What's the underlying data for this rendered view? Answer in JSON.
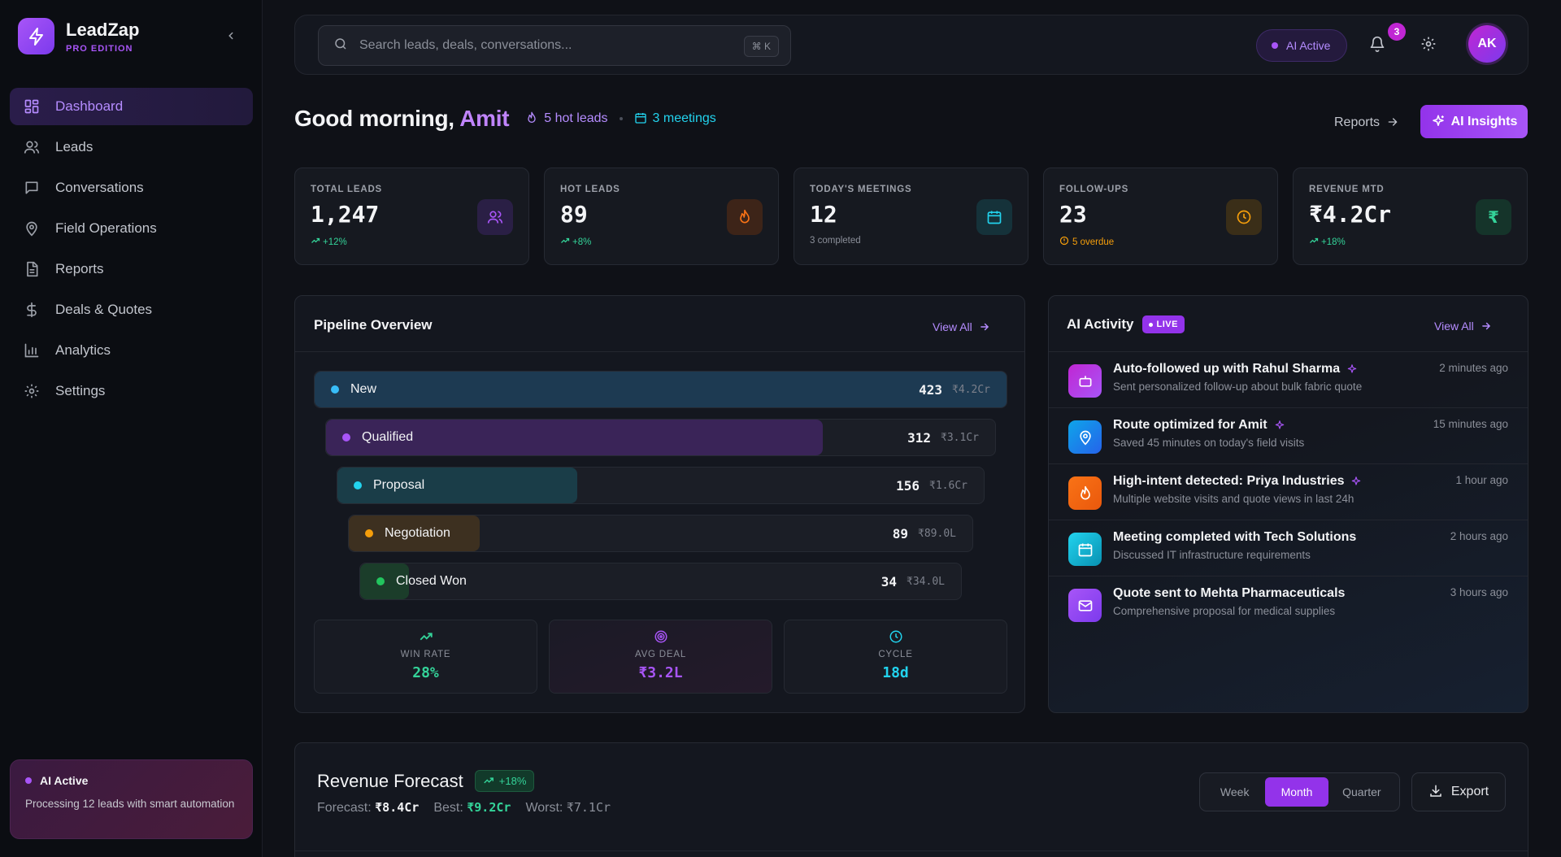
{
  "brand": {
    "name": "LeadZap",
    "edition": "PRO EDITION"
  },
  "nav": [
    {
      "label": "Dashboard",
      "icon": "dashboard-icon",
      "active": true
    },
    {
      "label": "Leads",
      "icon": "users-icon"
    },
    {
      "label": "Conversations",
      "icon": "chat-icon"
    },
    {
      "label": "Field Operations",
      "icon": "map-pin-icon"
    },
    {
      "label": "Reports",
      "icon": "document-icon"
    },
    {
      "label": "Deals & Quotes",
      "icon": "dollar-icon"
    },
    {
      "label": "Analytics",
      "icon": "bar-chart-icon"
    },
    {
      "label": "Settings",
      "icon": "gear-icon"
    }
  ],
  "ai_card": {
    "title": "AI Active",
    "desc": "Processing 12 leads with smart automation"
  },
  "topbar": {
    "search_placeholder": "Search leads, deals, conversations...",
    "shortcut": "⌘ K",
    "ai_status": "AI Active",
    "notifications": "3",
    "avatar": "AK"
  },
  "greeting": {
    "prefix": "Good morning,",
    "name": "Amit",
    "hot_leads": "5 hot leads",
    "meetings": "3 meetings",
    "reports_link": "Reports",
    "insights_button": "AI Insights"
  },
  "stats": [
    {
      "label": "TOTAL LEADS",
      "value": "1,247",
      "sub": "+12%",
      "sub_color": "#34d399",
      "icon": "users-icon",
      "accent": "#a855f7",
      "bg": "#2a1f45"
    },
    {
      "label": "HOT LEADS",
      "value": "89",
      "sub": "+8%",
      "sub_color": "#34d399",
      "icon": "flame-icon",
      "accent": "#f97316",
      "bg": "#3d2418"
    },
    {
      "label": "TODAY'S MEETINGS",
      "value": "12",
      "sub": "3 completed",
      "sub_color": "#8b8f99",
      "icon": "calendar-icon",
      "accent": "#22d3ee",
      "bg": "#15323a"
    },
    {
      "label": "FOLLOW-UPS",
      "value": "23",
      "sub": "5 overdue",
      "sub_color": "#f59e0b",
      "icon": "clock-icon",
      "accent": "#f59e0b",
      "bg": "#3a2e18"
    },
    {
      "label": "REVENUE MTD",
      "value": "₹4.2Cr",
      "sub": "+18%",
      "sub_color": "#34d399",
      "icon": "rupee-icon",
      "accent": "#34d399",
      "bg": "#15342a"
    }
  ],
  "pipeline": {
    "title": "Pipeline Overview",
    "view_all": "View All",
    "stages": [
      {
        "name": "New",
        "count": "423",
        "amount": "₹4.2Cr",
        "fill": 1.0,
        "color": "#38bdf8",
        "fill_color": "#1d3a52"
      },
      {
        "name": "Qualified",
        "count": "312",
        "amount": "₹3.1Cr",
        "fill": 0.74,
        "color": "#a855f7",
        "fill_color": "#3a2458"
      },
      {
        "name": "Proposal",
        "count": "156",
        "amount": "₹1.6Cr",
        "fill": 0.37,
        "color": "#22d3ee",
        "fill_color": "#1a3d48"
      },
      {
        "name": "Negotiation",
        "count": "89",
        "amount": "₹89.0L",
        "fill": 0.21,
        "color": "#f59e0b",
        "fill_color": "#3d3020"
      },
      {
        "name": "Closed Won",
        "count": "34",
        "amount": "₹34.0L",
        "fill": 0.08,
        "color": "#22c55e",
        "fill_color": "#1b3d2a"
      }
    ],
    "metrics": [
      {
        "label": "WIN RATE",
        "value": "28%",
        "color": "#34d399",
        "icon": "trending-up-icon"
      },
      {
        "label": "AVG DEAL",
        "value": "₹3.2L",
        "color": "#a855f7",
        "icon": "target-icon"
      },
      {
        "label": "CYCLE",
        "value": "18d",
        "color": "#22d3ee",
        "icon": "clock-icon"
      }
    ]
  },
  "activity": {
    "title": "AI Activity",
    "live": "LIVE",
    "view_all": "View All",
    "items": [
      {
        "title": "Auto-followed up with Rahul Sharma",
        "desc": "Sent personalized follow-up about bulk fabric quote",
        "time": "2 minutes ago",
        "icon": "bot-icon",
        "bg": "linear-gradient(135deg,#c026d3,#a855f7)",
        "ai": true
      },
      {
        "title": "Route optimized for Amit",
        "desc": "Saved 45 minutes on today's field visits",
        "time": "15 minutes ago",
        "icon": "map-pin-icon",
        "bg": "linear-gradient(135deg,#0ea5e9,#2563eb)",
        "ai": true
      },
      {
        "title": "High-intent detected: Priya Industries",
        "desc": "Multiple website visits and quote views in last 24h",
        "time": "1 hour ago",
        "icon": "flame-icon",
        "bg": "linear-gradient(135deg,#f97316,#ea580c)",
        "ai": true
      },
      {
        "title": "Meeting completed with Tech Solutions",
        "desc": "Discussed IT infrastructure requirements",
        "time": "2 hours ago",
        "icon": "calendar-icon",
        "bg": "linear-gradient(135deg,#22d3ee,#0891b2)",
        "ai": false
      },
      {
        "title": "Quote sent to Mehta Pharmaceuticals",
        "desc": "Comprehensive proposal for medical supplies",
        "time": "3 hours ago",
        "icon": "mail-icon",
        "bg": "linear-gradient(135deg,#a855f7,#7c3aed)",
        "ai": false
      }
    ]
  },
  "forecast": {
    "title": "Revenue Forecast",
    "badge": "+18%",
    "forecast_label": "Forecast:",
    "forecast_value": "₹8.4Cr",
    "best_label": "Best:",
    "best_value": "₹9.2Cr",
    "worst_label": "Worst:",
    "worst_value": "₹7.1Cr",
    "periods": [
      "Week",
      "Month",
      "Quarter"
    ],
    "active_period": "Month",
    "export": "Export"
  }
}
